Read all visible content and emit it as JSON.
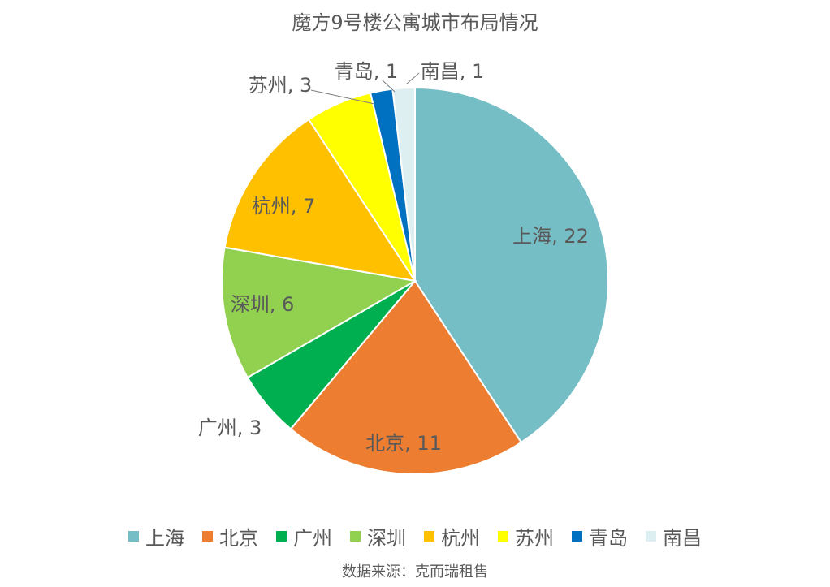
{
  "chart_data": {
    "type": "pie",
    "title": "魔方9号楼公寓城市布局情况",
    "slices": [
      {
        "label": "上海",
        "value": 22,
        "color": "#76BEC6",
        "data_label": "上海, 22"
      },
      {
        "label": "北京",
        "value": 11,
        "color": "#ED7D31",
        "data_label": "北京, 11"
      },
      {
        "label": "广州",
        "value": 3,
        "color": "#00B050",
        "data_label": "广州, 3"
      },
      {
        "label": "深圳",
        "value": 6,
        "color": "#92D050",
        "data_label": "深圳, 6"
      },
      {
        "label": "杭州",
        "value": 7,
        "color": "#FFC000",
        "data_label": "杭州, 7"
      },
      {
        "label": "苏州",
        "value": 3,
        "color": "#FFFF00",
        "data_label": "苏州, 3"
      },
      {
        "label": "青岛",
        "value": 1,
        "color": "#0070C0",
        "data_label": "青岛, 1"
      },
      {
        "label": "南昌",
        "value": 1,
        "color": "#DEEFF1",
        "data_label": "南昌, 1"
      }
    ],
    "legend_position": "bottom",
    "source": "数据来源：克而瑞租售"
  }
}
